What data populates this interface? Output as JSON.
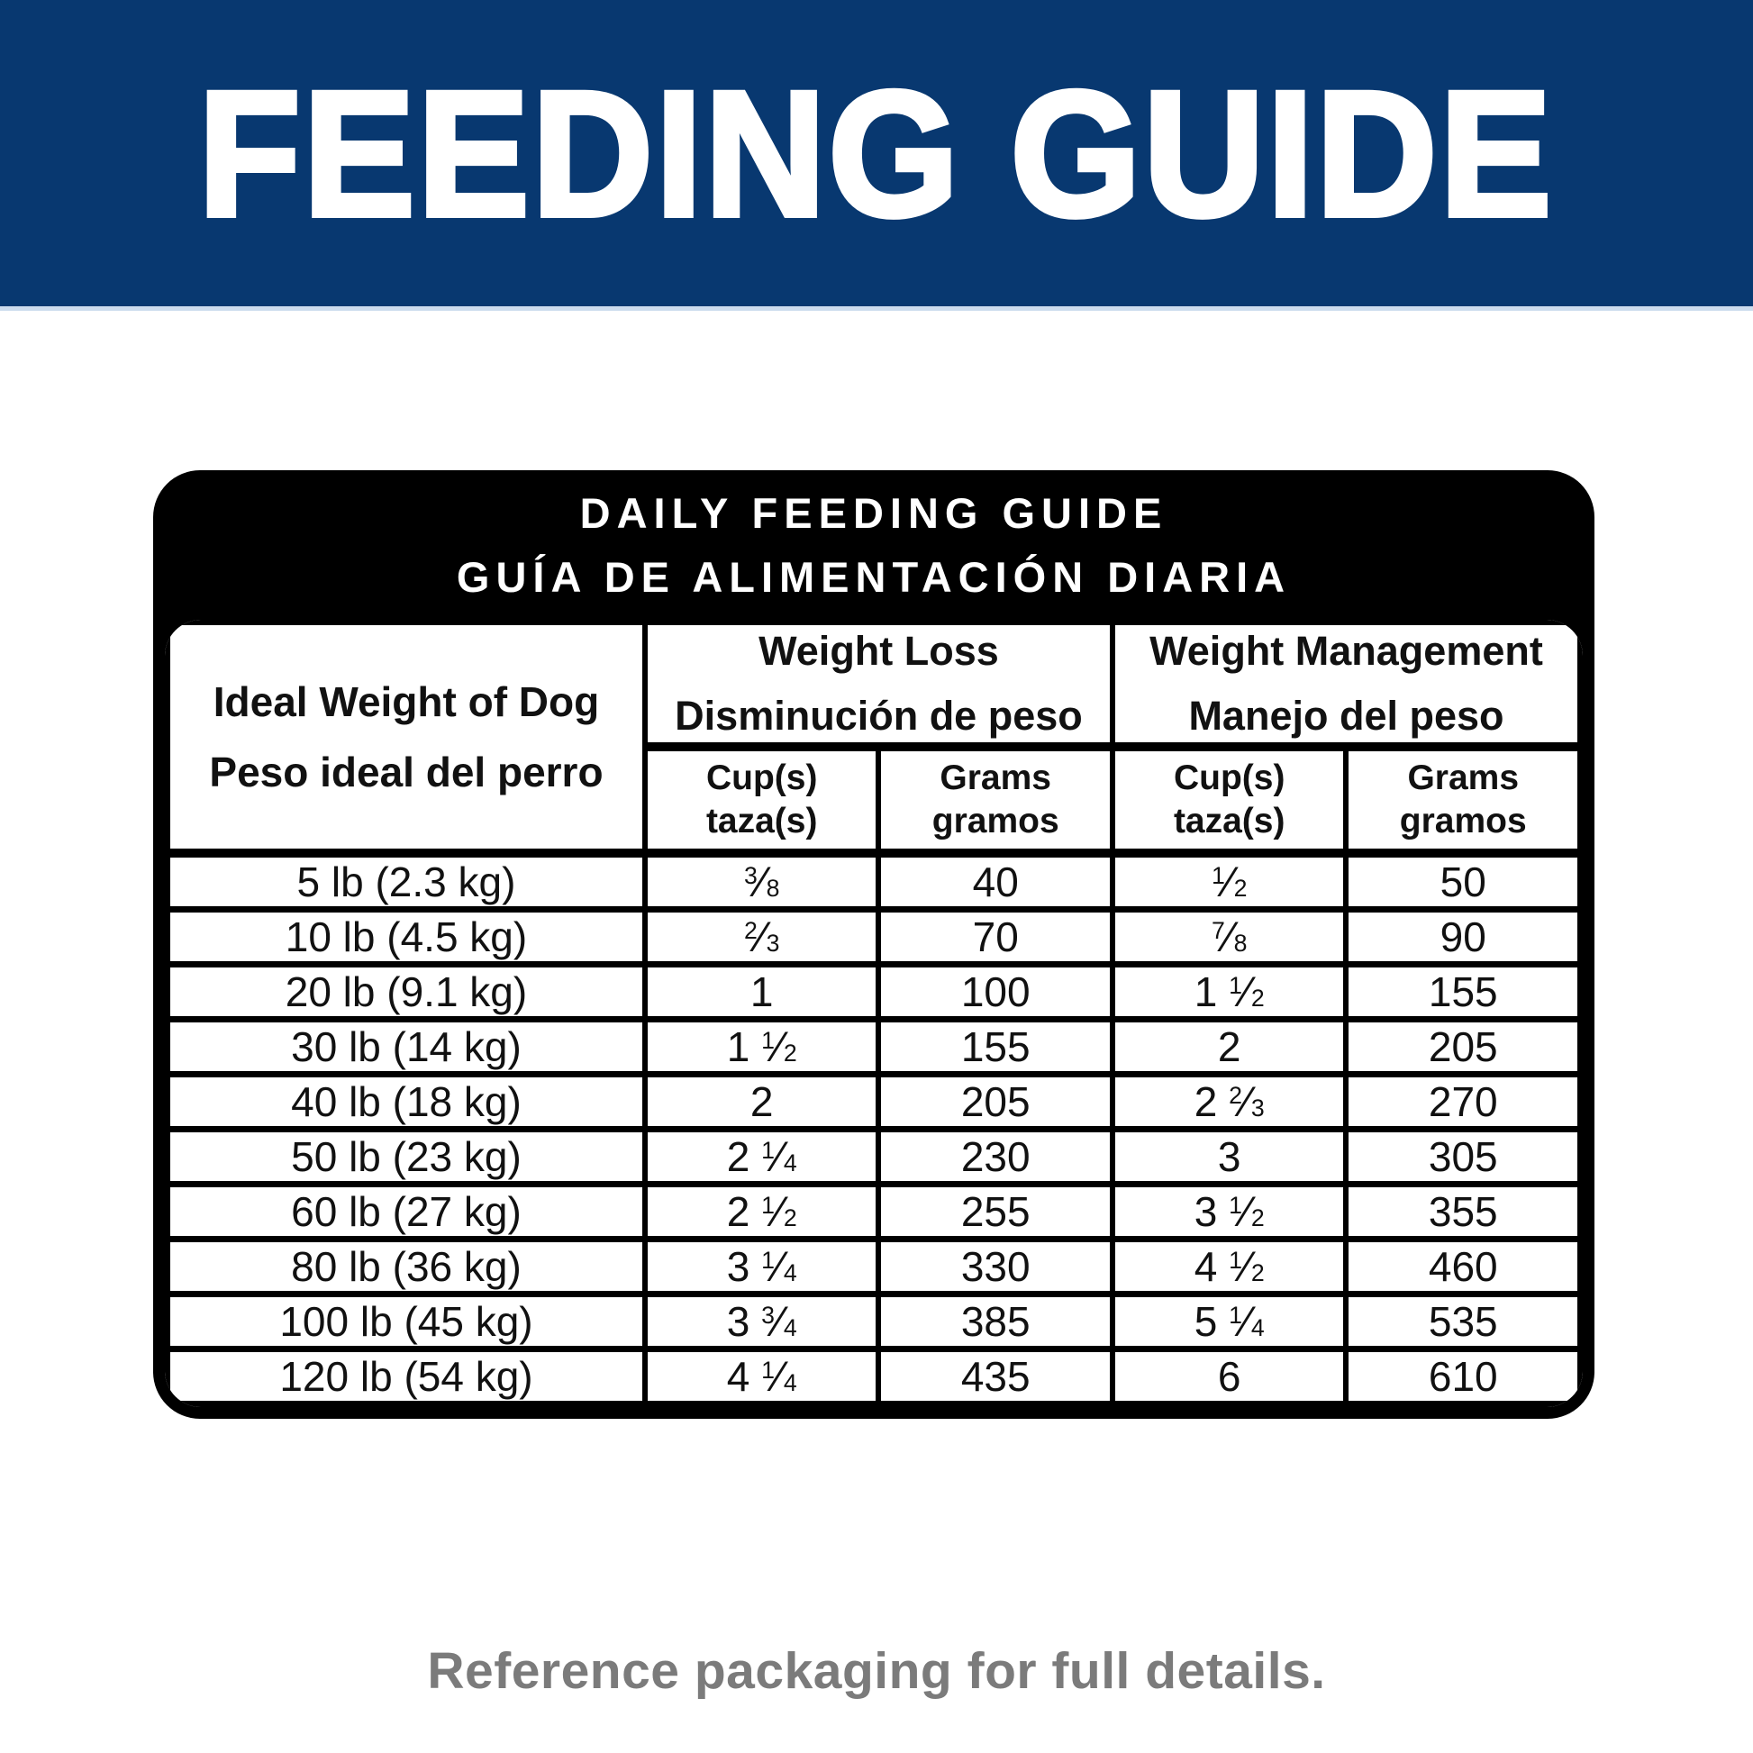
{
  "banner": {
    "title": "FEEDING GUIDE",
    "bg_color": "#083870",
    "text_color": "#FFFFFF"
  },
  "card": {
    "title_line1": "DAILY FEEDING GUIDE",
    "title_line2": "GUÍA DE ALIMENTACIÓN DIARIA",
    "bg_color": "#000000",
    "text_color": "#FFFFFF"
  },
  "table": {
    "weight_header": {
      "en": "Ideal Weight of Dog",
      "es": "Peso ideal del perro"
    },
    "groups": [
      {
        "en": "Weight Loss",
        "es": "Disminución de peso"
      },
      {
        "en": "Weight Management",
        "es": "Manejo del peso"
      }
    ],
    "subheaders": [
      {
        "en": "Cup(s)",
        "es": "taza(s)"
      },
      {
        "en": "Grams",
        "es": "gramos"
      },
      {
        "en": "Cup(s)",
        "es": "taza(s)"
      },
      {
        "en": "Grams",
        "es": "gramos"
      }
    ],
    "rows": [
      {
        "weight": "5 lb (2.3 kg)",
        "loss_cups": "3/8",
        "loss_grams": "40",
        "mgmt_cups": "1/2",
        "mgmt_grams": "50"
      },
      {
        "weight": "10 lb (4.5 kg)",
        "loss_cups": "2/3",
        "loss_grams": "70",
        "mgmt_cups": "7/8",
        "mgmt_grams": "90"
      },
      {
        "weight": "20 lb (9.1 kg)",
        "loss_cups": "1",
        "loss_grams": "100",
        "mgmt_cups": "1 1/2",
        "mgmt_grams": "155"
      },
      {
        "weight": "30 lb (14 kg)",
        "loss_cups": "1 1/2",
        "loss_grams": "155",
        "mgmt_cups": "2",
        "mgmt_grams": "205"
      },
      {
        "weight": "40 lb (18 kg)",
        "loss_cups": "2",
        "loss_grams": "205",
        "mgmt_cups": "2 2/3",
        "mgmt_grams": "270"
      },
      {
        "weight": "50 lb (23 kg)",
        "loss_cups": "2 1/4",
        "loss_grams": "230",
        "mgmt_cups": "3",
        "mgmt_grams": "305"
      },
      {
        "weight": "60 lb (27 kg)",
        "loss_cups": "2 1/2",
        "loss_grams": "255",
        "mgmt_cups": "3 1/2",
        "mgmt_grams": "355"
      },
      {
        "weight": "80 lb (36 kg)",
        "loss_cups": "3 1/4",
        "loss_grams": "330",
        "mgmt_cups": "4 1/2",
        "mgmt_grams": "460"
      },
      {
        "weight": "100 lb (45 kg)",
        "loss_cups": "3 3/4",
        "loss_grams": "385",
        "mgmt_cups": "5 1/4",
        "mgmt_grams": "535"
      },
      {
        "weight": "120 lb (54 kg)",
        "loss_cups": "4 1/4",
        "loss_grams": "435",
        "mgmt_cups": "6",
        "mgmt_grams": "610"
      }
    ]
  },
  "footer": {
    "text": "Reference packaging for full details.",
    "color": "#7B7B7B"
  }
}
